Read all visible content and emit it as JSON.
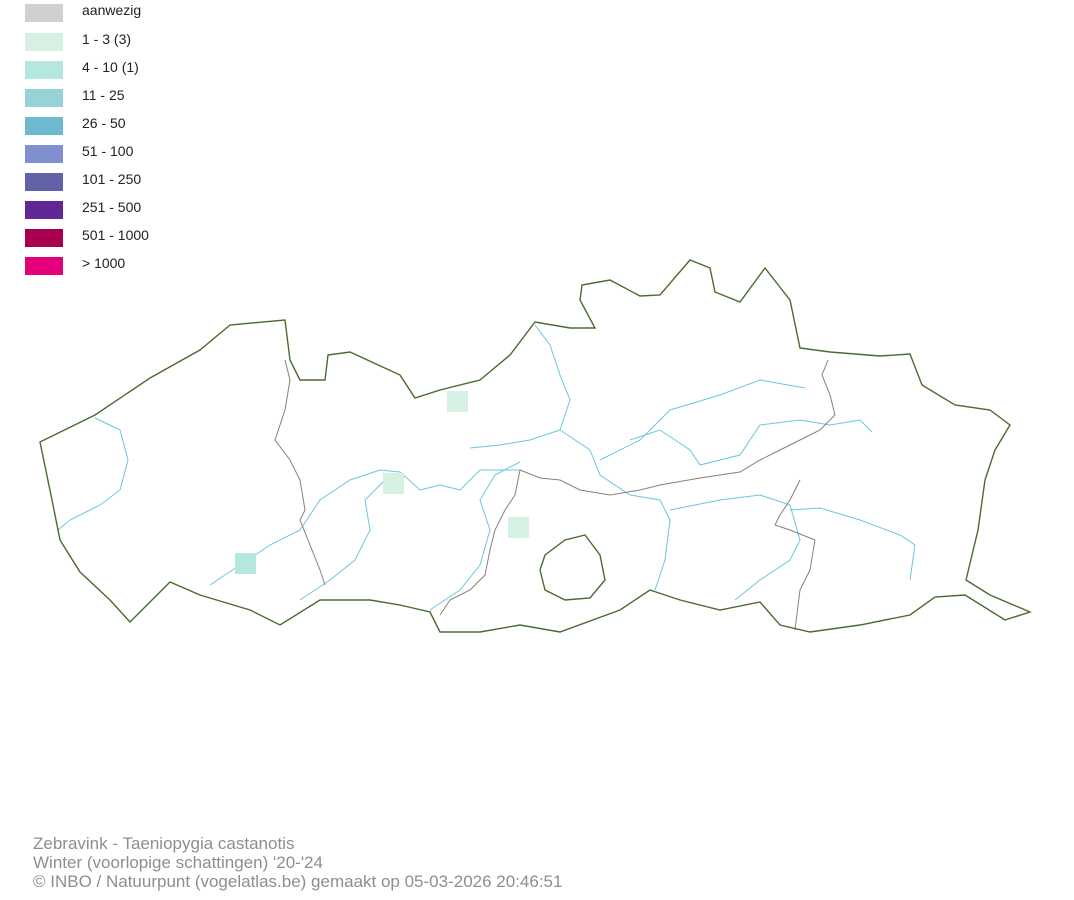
{
  "legend": {
    "items": [
      {
        "label": "aanwezig",
        "color": "#d0d0d0"
      },
      {
        "label": "1 - 3 (3)",
        "color": "#d6f0e4"
      },
      {
        "label": "4 - 10 (1)",
        "color": "#b3e7df"
      },
      {
        "label": "11 - 25",
        "color": "#96d2d6"
      },
      {
        "label": "26 - 50",
        "color": "#6fb9d0"
      },
      {
        "label": "51 - 100",
        "color": "#7f8fcf"
      },
      {
        "label": "101 - 250",
        "color": "#6262a8"
      },
      {
        "label": "251 - 500",
        "color": "#612795"
      },
      {
        "label": "501 - 1000",
        "color": "#a8004e"
      },
      {
        "label": "> 1000",
        "color": "#e3007a"
      }
    ]
  },
  "map": {
    "border_color": "#4a6b30",
    "province_border_color": "#8a7f78",
    "river_color": "#6cc7dc",
    "observed_cells": [
      {
        "class": "1 - 3",
        "color": "#d6f0e4"
      },
      {
        "class": "1 - 3",
        "color": "#d6f0e4"
      },
      {
        "class": "1 - 3",
        "color": "#d6f0e4"
      },
      {
        "class": "4 - 10",
        "color": "#b3e7df"
      }
    ]
  },
  "footer": {
    "species": "Zebravink - Taeniopygia castanotis",
    "season": "Winter (voorlopige schattingen) '20-'24",
    "credit": "© INBO / Natuurpunt (vogelatlas.be) gemaakt op 05-03-2026 20:46:51"
  }
}
